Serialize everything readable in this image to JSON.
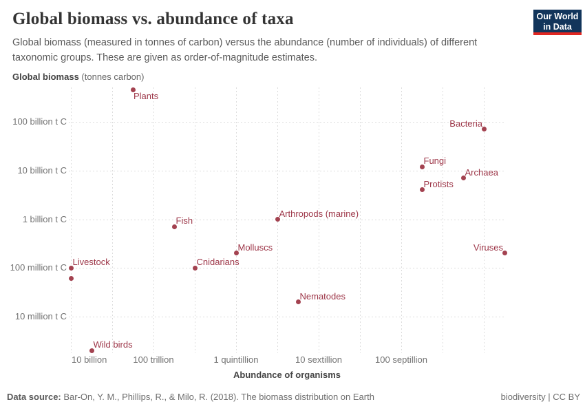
{
  "header": {
    "title": "Global biomass vs. abundance of taxa",
    "subtitle_line1": "Global biomass (measured in tonnes of carbon) versus the abundance (number of individuals) of different",
    "subtitle_line2": "taxonomic groups. These are given as order-of-magnitude estimates.",
    "logo_line1": "Our World",
    "logo_line2": "in Data"
  },
  "axes": {
    "y_title_bold": "Global biomass",
    "y_title_rest": " (tonnes carbon)"
  },
  "footer": {
    "source_label": "Data source:",
    "source_text": " Bar-On, Y. M., Phillips, R., & Milo, R. (2018). The biomass distribution on Earth",
    "license": "biodiversity | CC BY"
  },
  "colors": {
    "point": "#a34250",
    "point_label": "#9d3648",
    "grid": "#dcdcdc",
    "logo_navy": "#12355b",
    "logo_red": "#e02721"
  },
  "chart_data": {
    "type": "scatter",
    "x_scale": "log",
    "y_scale": "log",
    "grid": "dashed",
    "xlabel": "Abundance of organisms",
    "ylabel": "Global biomass (tonnes carbon)",
    "x_range_log10": [
      9.9,
      31.1
    ],
    "y_range_log10": [
      6.25,
      11.7
    ],
    "x_ticks": [
      {
        "label": "10 billion",
        "value": 10000000000.0,
        "align": "left"
      },
      {
        "label": "100 trillion",
        "value": 100000000000000.0,
        "align": "center"
      },
      {
        "label": "1 quintillion",
        "value": 1e+18,
        "align": "center"
      },
      {
        "label": "10 sextillion",
        "value": 1e+22,
        "align": "center"
      },
      {
        "label": "100 septillion",
        "value": 1e+26,
        "align": "center"
      }
    ],
    "y_ticks": [
      {
        "label": "100 billion t C",
        "value": 100000000000.0
      },
      {
        "label": "10 billion t C",
        "value": 10000000000.0
      },
      {
        "label": "1 billion t C",
        "value": 1000000000.0
      },
      {
        "label": "100 million t C",
        "value": 100000000.0
      },
      {
        "label": "10 million t C",
        "value": 10000000.0
      }
    ],
    "points": [
      {
        "label": "Plants",
        "abundance": 10000000000000.0,
        "biomass_tonnes_carbon": 450000000000.0,
        "anchor": "br"
      },
      {
        "label": "Bacteria",
        "abundance": 1e+30,
        "biomass_tonnes_carbon": 70000000000.0,
        "anchor": "tl"
      },
      {
        "label": "Fungi",
        "abundance": 1e+27,
        "biomass_tonnes_carbon": 12000000000.0,
        "anchor": "tr"
      },
      {
        "label": "Archaea",
        "abundance": 1e+29,
        "biomass_tonnes_carbon": 7000000000.0,
        "anchor": "tr"
      },
      {
        "label": "Protists",
        "abundance": 1e+27,
        "biomass_tonnes_carbon": 4000000000.0,
        "anchor": "tr"
      },
      {
        "label": "Arthropods (marine)",
        "abundance": 1e+20,
        "biomass_tonnes_carbon": 1000000000.0,
        "anchor": "tr"
      },
      {
        "label": "Fish",
        "abundance": 1000000000000000.0,
        "biomass_tonnes_carbon": 700000000.0,
        "anchor": "tr"
      },
      {
        "label": "Molluscs",
        "abundance": 1e+18,
        "biomass_tonnes_carbon": 200000000.0,
        "anchor": "tr"
      },
      {
        "label": "Viruses",
        "abundance": 1e+31,
        "biomass_tonnes_carbon": 200000000.0,
        "anchor": "tl"
      },
      {
        "label": "Cnidarians",
        "abundance": 1e+16,
        "biomass_tonnes_carbon": 100000000.0,
        "anchor": "tr"
      },
      {
        "label": "Livestock",
        "abundance": 10000000000.0,
        "biomass_tonnes_carbon": 100000000.0,
        "anchor": "tr"
      },
      {
        "label": "",
        "abundance": 10000000000.0,
        "biomass_tonnes_carbon": 60000000.0,
        "anchor": "none"
      },
      {
        "label": "Nematodes",
        "abundance": 1e+21,
        "biomass_tonnes_carbon": 20000000.0,
        "anchor": "tr"
      },
      {
        "label": "Wild birds",
        "abundance": 100000000000.0,
        "biomass_tonnes_carbon": 2000000.0,
        "anchor": "tr"
      }
    ]
  }
}
